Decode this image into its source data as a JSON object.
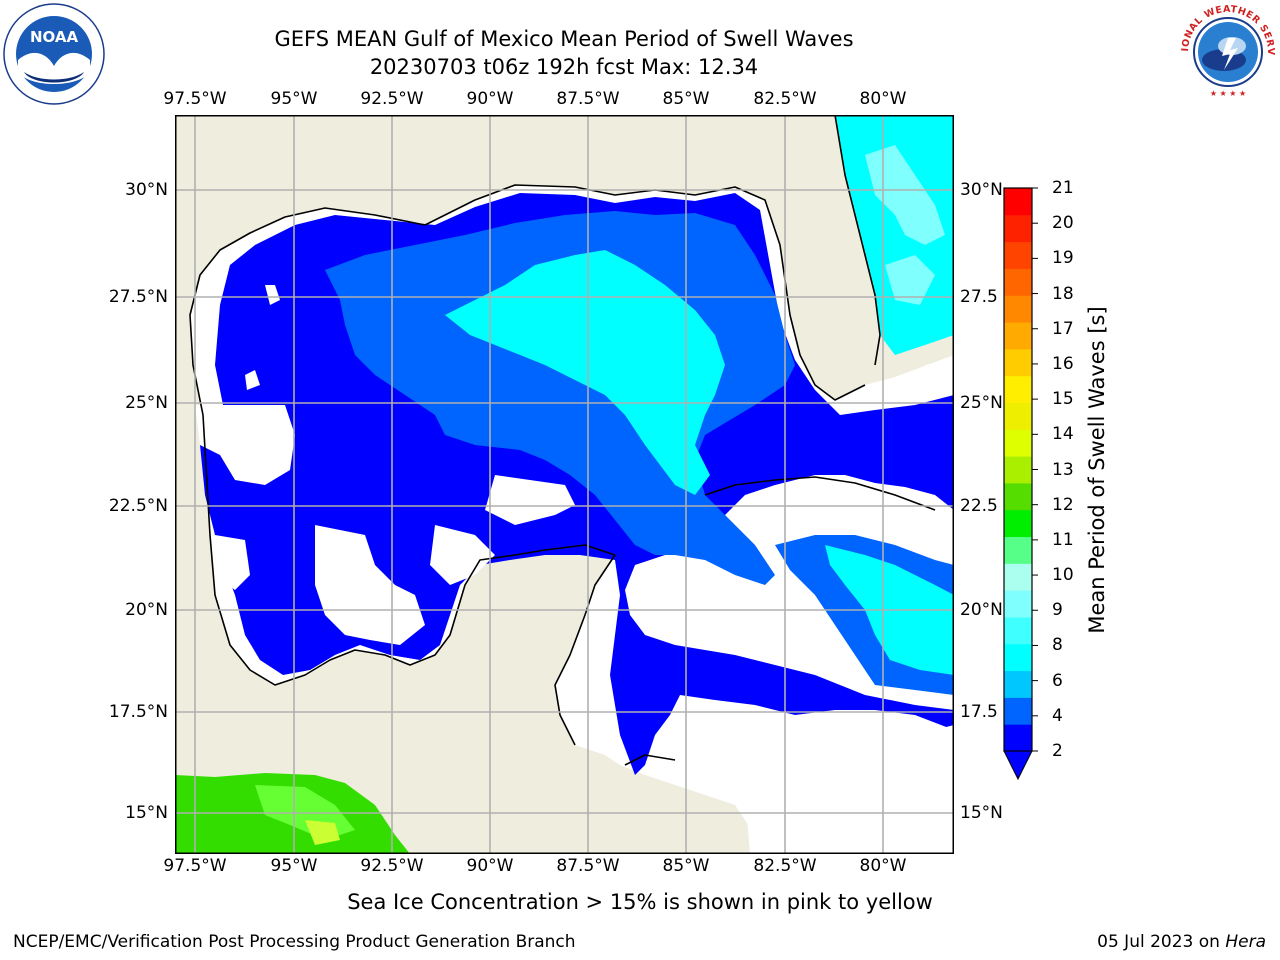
{
  "title": {
    "line1": "GEFS MEAN Gulf of Mexico Mean Period of Swell Waves",
    "line2": "20230703 t06z 192h fcst   Max: 12.34"
  },
  "map": {
    "lon_ticks": [
      "97.5°W",
      "95°W",
      "92.5°W",
      "90°W",
      "87.5°W",
      "85°W",
      "82.5°W",
      "80°W"
    ],
    "lat_ticks_left": [
      "30°N",
      "27.5°N",
      "25°N",
      "22.5°N",
      "20°N",
      "17.5°N",
      "15°N"
    ],
    "lat_ticks_right": [
      "30°N",
      "27.5",
      "25°N",
      "22.5",
      "20°N",
      "17.5",
      "15°N"
    ],
    "colors": {
      "land": "#EEEDDE",
      "coast": "#000000",
      "grid": "#B0B0B0",
      "no_data": "#FFFFFF"
    }
  },
  "colorbar": {
    "label": "Mean Period of Swell Waves [s]",
    "ticks": [
      "2",
      "4",
      "6",
      "8",
      "9",
      "10",
      "11",
      "12",
      "13",
      "14",
      "15",
      "16",
      "17",
      "18",
      "19",
      "20",
      "21"
    ],
    "colors": [
      "#0000FF",
      "#0064FF",
      "#00C8FF",
      "#00FFFF",
      "#40FFFF",
      "#80FFFF",
      "#AAFFEE",
      "#55FF88",
      "#00EE00",
      "#55DD00",
      "#AAEE00",
      "#DDFF00",
      "#EEEE00",
      "#FFEE00",
      "#FFCC00",
      "#FFAA00",
      "#FF8800",
      "#FF6600",
      "#FF4400",
      "#FF2200",
      "#FF0000"
    ]
  },
  "footer": {
    "note": "Sea Ice Concentration > 15% is shown in pink to yellow",
    "credit": "NCEP/EMC/Verification Post Processing Product Generation Branch",
    "date": "05 Jul 2023 on ",
    "host": "Hera"
  },
  "logos": {
    "left": "NOAA",
    "right": "NATIONAL WEATHER SERVICE"
  }
}
